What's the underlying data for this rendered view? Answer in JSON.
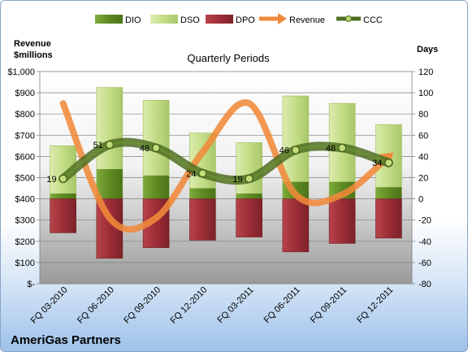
{
  "chart_data": {
    "type": "bar",
    "title": "Quarterly Periods",
    "company": "AmeriGas Partners",
    "y_left_label_line1": "Revenue",
    "y_left_label_line2": "$millions",
    "y_right_label": "Days",
    "y_left_ticks": [
      "$-",
      "$100",
      "$200",
      "$300",
      "$400",
      "$500",
      "$600",
      "$700",
      "$800",
      "$900",
      "$1,000"
    ],
    "y_right_ticks": [
      "-80",
      "-60",
      "-40",
      "-20",
      "0",
      "20",
      "40",
      "60",
      "80",
      "100",
      "120"
    ],
    "y_left_range": [
      0,
      1000
    ],
    "y_right_range": [
      -80,
      120
    ],
    "categories": [
      "FQ 03-2010",
      "FQ 06-2010",
      "FQ 09-2010",
      "FQ 12-2010",
      "FQ 03-2011",
      "FQ 06-2011",
      "FQ 09-2011",
      "FQ 12-2011"
    ],
    "legend": [
      "DIO",
      "DSO",
      "DPO",
      "Revenue",
      "CCC"
    ],
    "series": [
      {
        "name": "DIO",
        "axis": "right",
        "values": [
          5,
          28,
          22,
          10,
          5,
          16,
          16,
          11
        ]
      },
      {
        "name": "DSO",
        "axis": "right",
        "values": [
          50,
          105,
          93,
          62,
          53,
          97,
          90,
          70
        ]
      },
      {
        "name": "DPO",
        "axis": "right",
        "values": [
          -32,
          -56,
          -46,
          -39,
          -36,
          -50,
          -42,
          -37
        ]
      },
      {
        "name": "Revenue",
        "axis": "left",
        "values": [
          850,
          310,
          310,
          620,
          850,
          420,
          420,
          600
        ]
      },
      {
        "name": "CCC",
        "axis": "right",
        "values": [
          19,
          51,
          48,
          24,
          19,
          46,
          48,
          34
        ]
      }
    ],
    "ccc_labels": [
      "19",
      "51",
      "48",
      "24",
      "19",
      "46",
      "48",
      "34"
    ],
    "colors": {
      "DIO": "#6c9a2c",
      "DSO": "#c9e08f",
      "DPO": "#a3303a",
      "Revenue": "#f08a3a",
      "CCC": "#4f6f22"
    },
    "grid": true,
    "legend_position": "top"
  }
}
